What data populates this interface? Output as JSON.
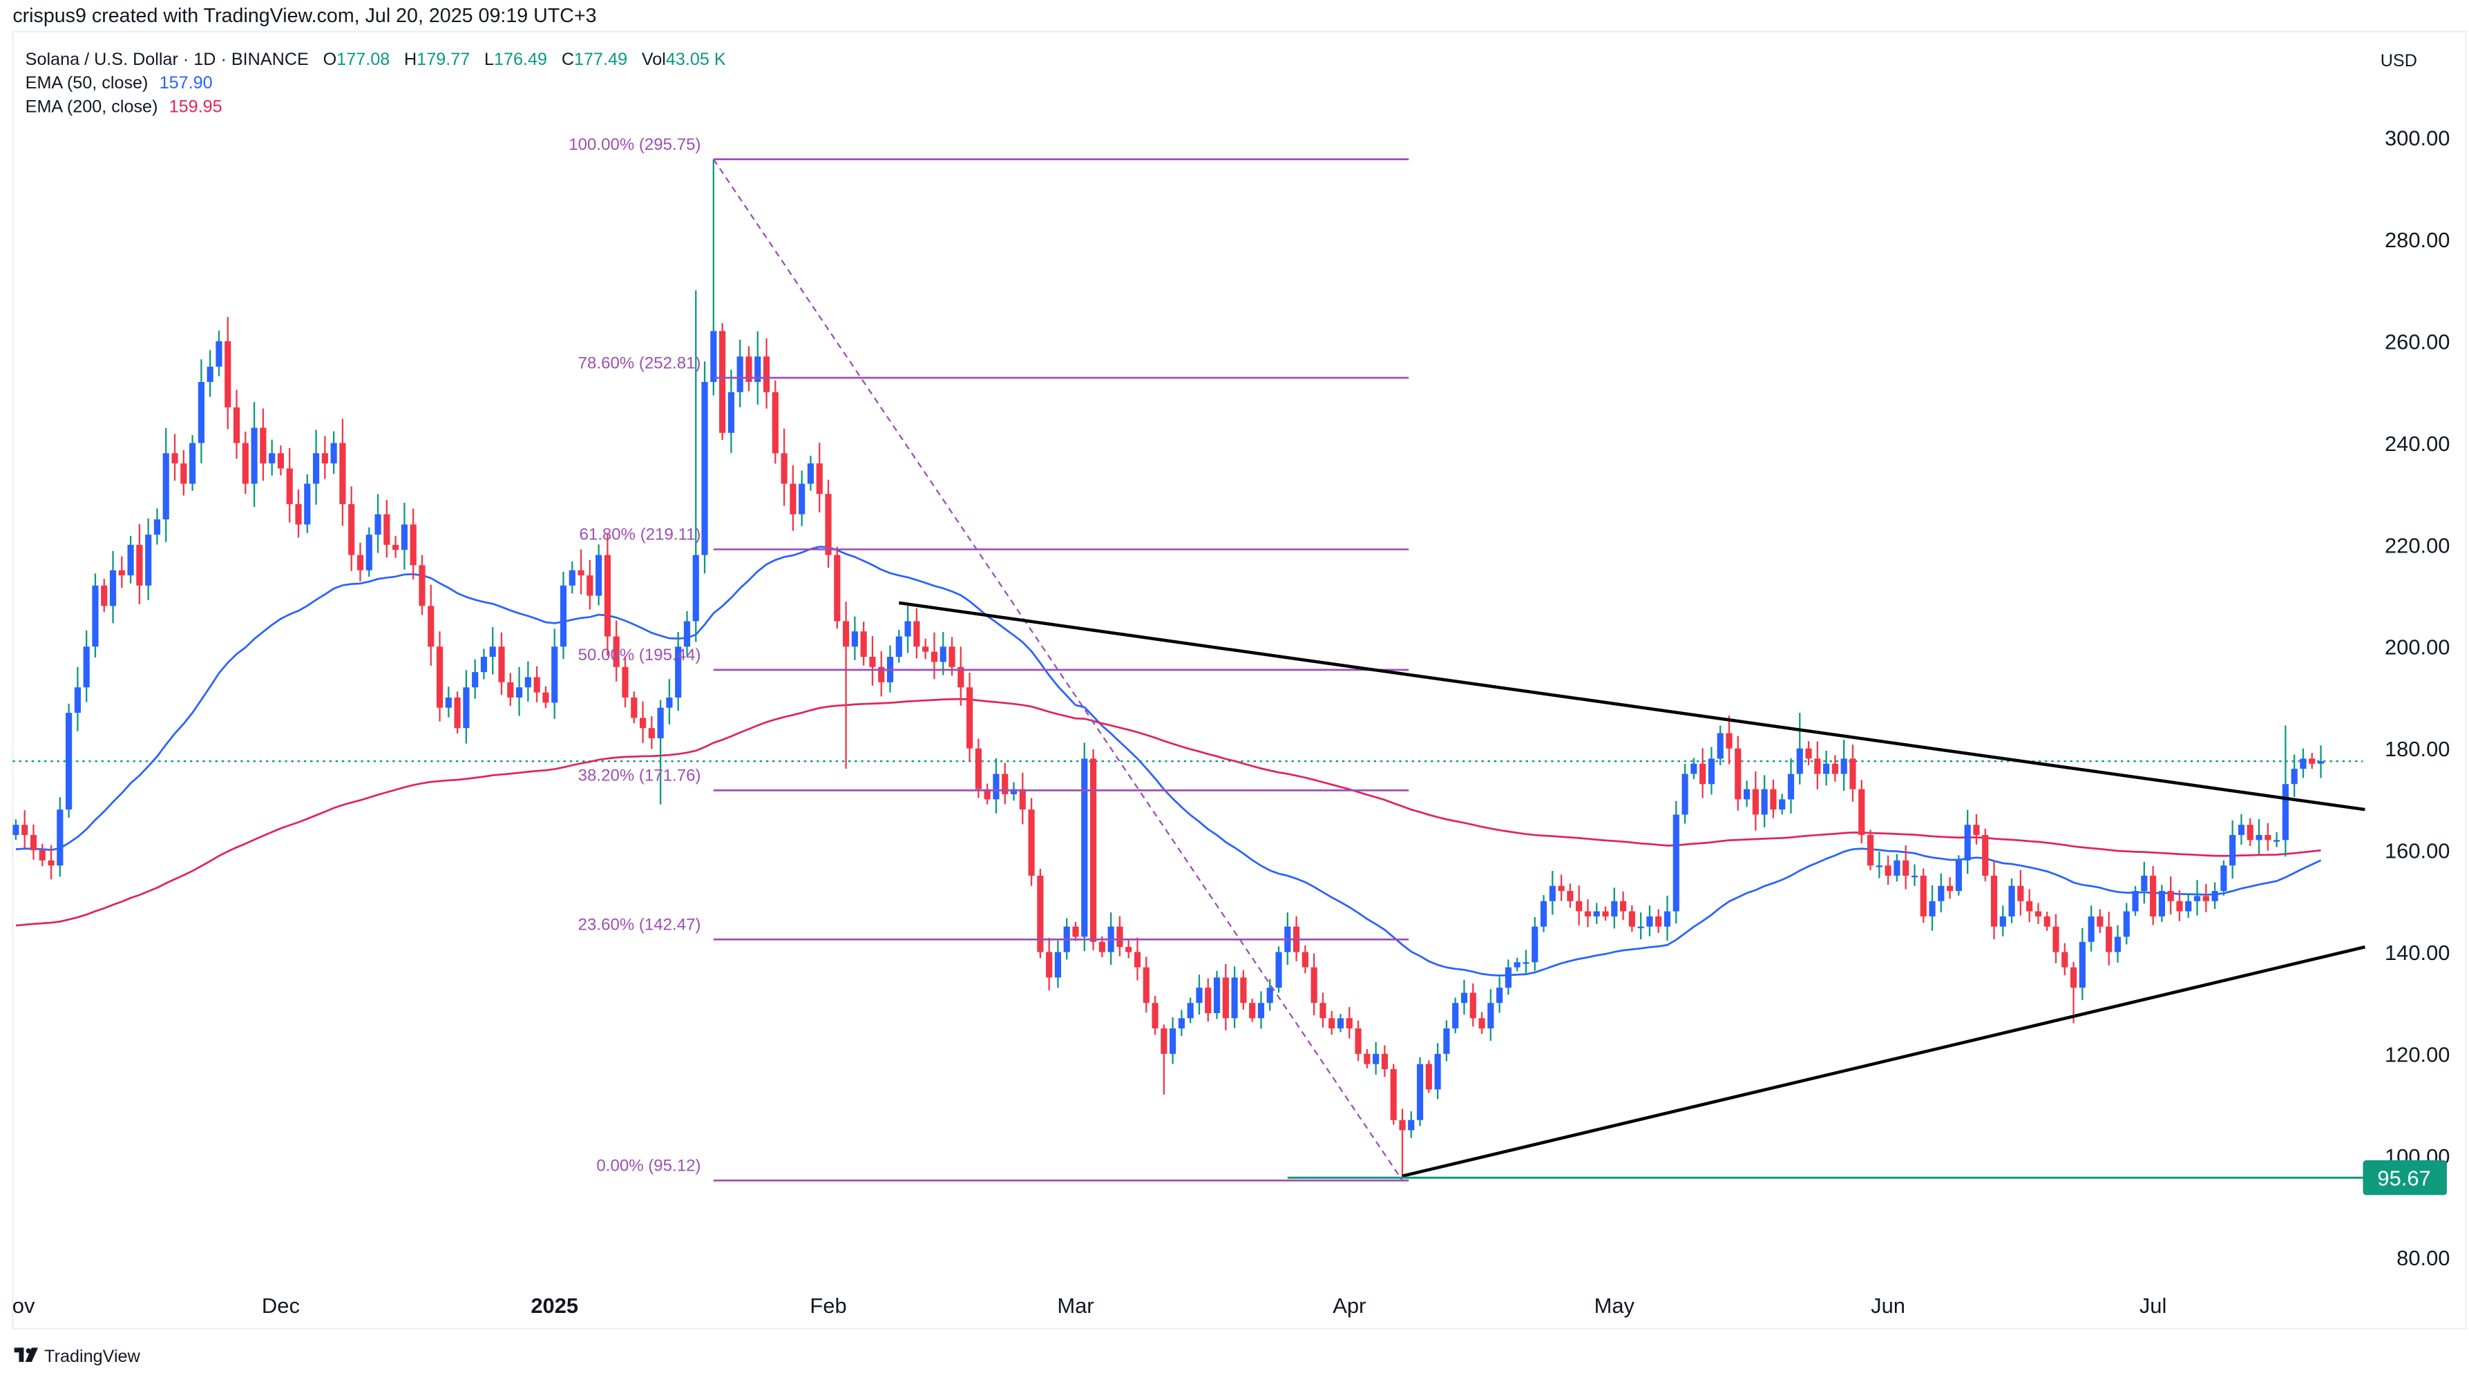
{
  "header": {
    "caption": "crispus9 created with TradingView.com, Jul 20, 2025 09:19 UTC+3"
  },
  "legend": {
    "symbol": "Solana / U.S. Dollar · 1D · BINANCE",
    "o_label": "O",
    "o": "177.08",
    "h_label": "H",
    "h": "179.77",
    "l_label": "L",
    "l": "176.49",
    "c_label": "C",
    "c": "177.49",
    "vol_label": "Vol",
    "vol": "43.05 K",
    "ema50_label": "EMA (50, close)",
    "ema50": "157.90",
    "ema200_label": "EMA (200, close)",
    "ema200": "159.95"
  },
  "currency": "USD",
  "footer": {
    "brand": "TradingView"
  },
  "colors": {
    "up_body": "#2962ff",
    "up_wick": "#089981",
    "down": "#f23645",
    "ema50": "#2962ff",
    "ema200": "#e0245e",
    "fib": "#9c4fb4",
    "support": "#0f9a7d",
    "trend": "#000000",
    "value": "#089981"
  },
  "chart_data": {
    "type": "candlestick",
    "title": "Solana / U.S. Dollar · 1D · BINANCE",
    "start_date": "2024-11-01",
    "first_open": 163,
    "wick_pct": 1.6,
    "closes": [
      165,
      163,
      160,
      158,
      157,
      168,
      187,
      192,
      200,
      212,
      208,
      215,
      214,
      220,
      212,
      222,
      225,
      238,
      236,
      232,
      240,
      252,
      255,
      260,
      247,
      240,
      232,
      243,
      236,
      238,
      235,
      228,
      224,
      232,
      238,
      236,
      240,
      228,
      218,
      215,
      222,
      226,
      220,
      219,
      224,
      216,
      208,
      200,
      188,
      190,
      184,
      192,
      195,
      198,
      200,
      193,
      190,
      192,
      194,
      191,
      189,
      200,
      212,
      215,
      214,
      210,
      218,
      202,
      196,
      190,
      186,
      184,
      182,
      188,
      190,
      200,
      205,
      218,
      252,
      262,
      242,
      250,
      257,
      252,
      257,
      250,
      238,
      232,
      226,
      232,
      236,
      230,
      218,
      205,
      200,
      203,
      198,
      196,
      193,
      198,
      202,
      205,
      200,
      199,
      197,
      200,
      196,
      192,
      180,
      172,
      170,
      175,
      171,
      172,
      168,
      155,
      140,
      135,
      140,
      145,
      143,
      178,
      142,
      140,
      145,
      141,
      140,
      137,
      130,
      125,
      120,
      125,
      127,
      130,
      133,
      128,
      135,
      127,
      135,
      130,
      127,
      130,
      133,
      140,
      145,
      140,
      137,
      130,
      127,
      125,
      127,
      125,
      120,
      118,
      120,
      117,
      107,
      105,
      107,
      118,
      113,
      120,
      125,
      130,
      132,
      127,
      125,
      130,
      133,
      137,
      138,
      138,
      145,
      150,
      153,
      152,
      150,
      148,
      147,
      148,
      147,
      150,
      148,
      145,
      145,
      147,
      145,
      148,
      167,
      175,
      177,
      173,
      178,
      183,
      180,
      170,
      172,
      167,
      172,
      168,
      170,
      175,
      180,
      178,
      175,
      177,
      175,
      178,
      172,
      163,
      157,
      157,
      155,
      158,
      155,
      155,
      147,
      150,
      153,
      152,
      158,
      165,
      163,
      155,
      145,
      147,
      153,
      150,
      148,
      147,
      145,
      140,
      137,
      133,
      142,
      147,
      145,
      140,
      143,
      148,
      152,
      155,
      147,
      152,
      150,
      148,
      150,
      151,
      150,
      152,
      157,
      163,
      165,
      162,
      163,
      162,
      162,
      173,
      176,
      178,
      177,
      177.49
    ],
    "high_overrides": {
      "2025-01-19": 295.75,
      "2025-01-17": 270,
      "2025-07-16": 184.5,
      "2025-05-22": 187
    },
    "low_overrides": {
      "2025-02-03": 176,
      "2025-04-07": 95.67,
      "2025-06-22": 126,
      "2025-01-13": 169,
      "2025-03-11": 112
    },
    "indicators": [
      {
        "name": "EMA (50, close)",
        "period": 50,
        "seed": 160,
        "color_key": "ema50"
      },
      {
        "name": "EMA (200, close)",
        "period": 200,
        "seed": 145,
        "color_key": "ema200"
      }
    ],
    "fibonacci": {
      "start_date": "2025-01-19",
      "end_date": "2025-04-07",
      "levels": [
        {
          "label": "100.00% (295.75)",
          "price": 295.75
        },
        {
          "label": "78.60% (252.81)",
          "price": 252.81
        },
        {
          "label": "61.80% (219.11)",
          "price": 219.11
        },
        {
          "label": "50.00% (195.44)",
          "price": 195.44
        },
        {
          "label": "38.20% (171.76)",
          "price": 171.76
        },
        {
          "label": "23.60% (142.47)",
          "price": 142.47
        },
        {
          "label": "0.00% (95.12)",
          "price": 95.12
        }
      ]
    },
    "trendlines": [
      {
        "name": "upper-trendline",
        "from": [
          "2025-02-09",
          208.6
        ],
        "to": [
          "2025-07-25",
          168
        ]
      },
      {
        "name": "lower-trendline",
        "from": [
          "2025-04-07",
          96
        ],
        "to": [
          "2025-07-25",
          141
        ]
      }
    ],
    "support_line": {
      "price": 95.67,
      "from_date": "2025-03-25",
      "label": "95.67"
    },
    "last_price": 177.49,
    "ylim": [
      80,
      300
    ],
    "yticks": [
      "300.00",
      "280.00",
      "260.00",
      "240.00",
      "220.00",
      "200.00",
      "180.00",
      "160.00",
      "140.00",
      "120.00",
      "100.00",
      "80.00"
    ],
    "xticks": [
      {
        "label": "Nov",
        "date": "2024-11-01",
        "bold": false
      },
      {
        "label": "Dec",
        "date": "2024-12-01",
        "bold": false
      },
      {
        "label": "2025",
        "date": "2025-01-01",
        "bold": true
      },
      {
        "label": "Feb",
        "date": "2025-02-01",
        "bold": false
      },
      {
        "label": "Mar",
        "date": "2025-03-01",
        "bold": false
      },
      {
        "label": "Apr",
        "date": "2025-04-01",
        "bold": false
      },
      {
        "label": "May",
        "date": "2025-05-01",
        "bold": false
      },
      {
        "label": "Jun",
        "date": "2025-06-01",
        "bold": false
      },
      {
        "label": "Jul",
        "date": "2025-07-01",
        "bold": false
      }
    ]
  }
}
